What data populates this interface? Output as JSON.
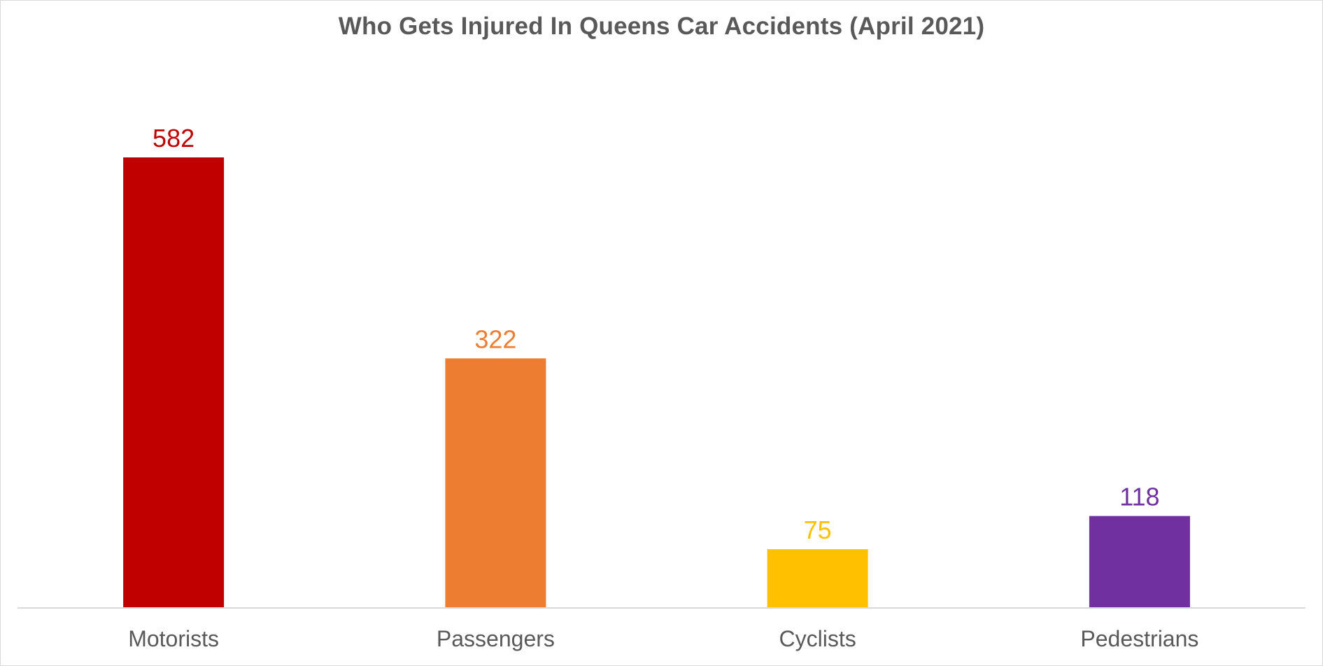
{
  "chart_data": {
    "type": "bar",
    "title": "Who Gets Injured In Queens Car Accidents (April 2021)",
    "xlabel": "",
    "ylabel": "",
    "categories": [
      "Motorists",
      "Passengers",
      "Cyclists",
      "Pedestrians"
    ],
    "values": [
      582,
      322,
      75,
      118
    ],
    "colors": [
      "#c00000",
      "#ed7d31",
      "#ffc000",
      "#7030a0"
    ],
    "data_labels": true,
    "ylim": [
      0,
      582
    ],
    "grid": false,
    "legend": "none"
  }
}
